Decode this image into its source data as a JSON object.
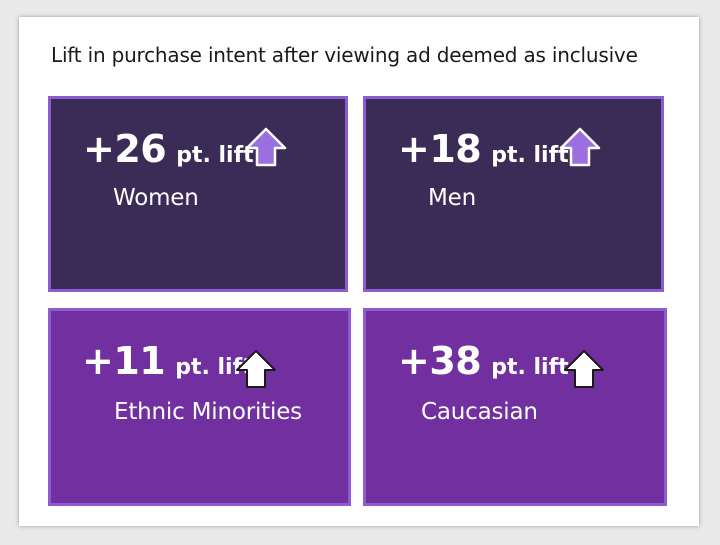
{
  "title": "Lift in purchase intent after viewing ad deemed as inclusive",
  "colors": {
    "dark_card": "#3b2b57",
    "bright_card": "#722fa0",
    "border": "#8b5dd1",
    "arrow_purple": "#9b6fe0",
    "arrow_white": "#ffffff"
  },
  "cards": [
    {
      "value": "+26",
      "unit": "pt. lift",
      "label": "Women",
      "arrow_icon": "up-arrow-purple-icon"
    },
    {
      "value": "+18",
      "unit": "pt. lift",
      "label": "Men",
      "arrow_icon": "up-arrow-purple-icon"
    },
    {
      "value": "+11",
      "unit": "pt. lift",
      "label": "Ethnic Minorities",
      "arrow_icon": "up-arrow-white-icon"
    },
    {
      "value": "+38",
      "unit": "pt. lift",
      "label": "Caucasian",
      "arrow_icon": "up-arrow-white-icon"
    }
  ],
  "chart_data": {
    "type": "table",
    "title": "Lift in purchase intent after viewing ad deemed as inclusive",
    "categories": [
      "Women",
      "Men",
      "Ethnic Minorities",
      "Caucasian"
    ],
    "values": [
      26,
      18,
      11,
      38
    ],
    "unit": "pt. lift"
  }
}
